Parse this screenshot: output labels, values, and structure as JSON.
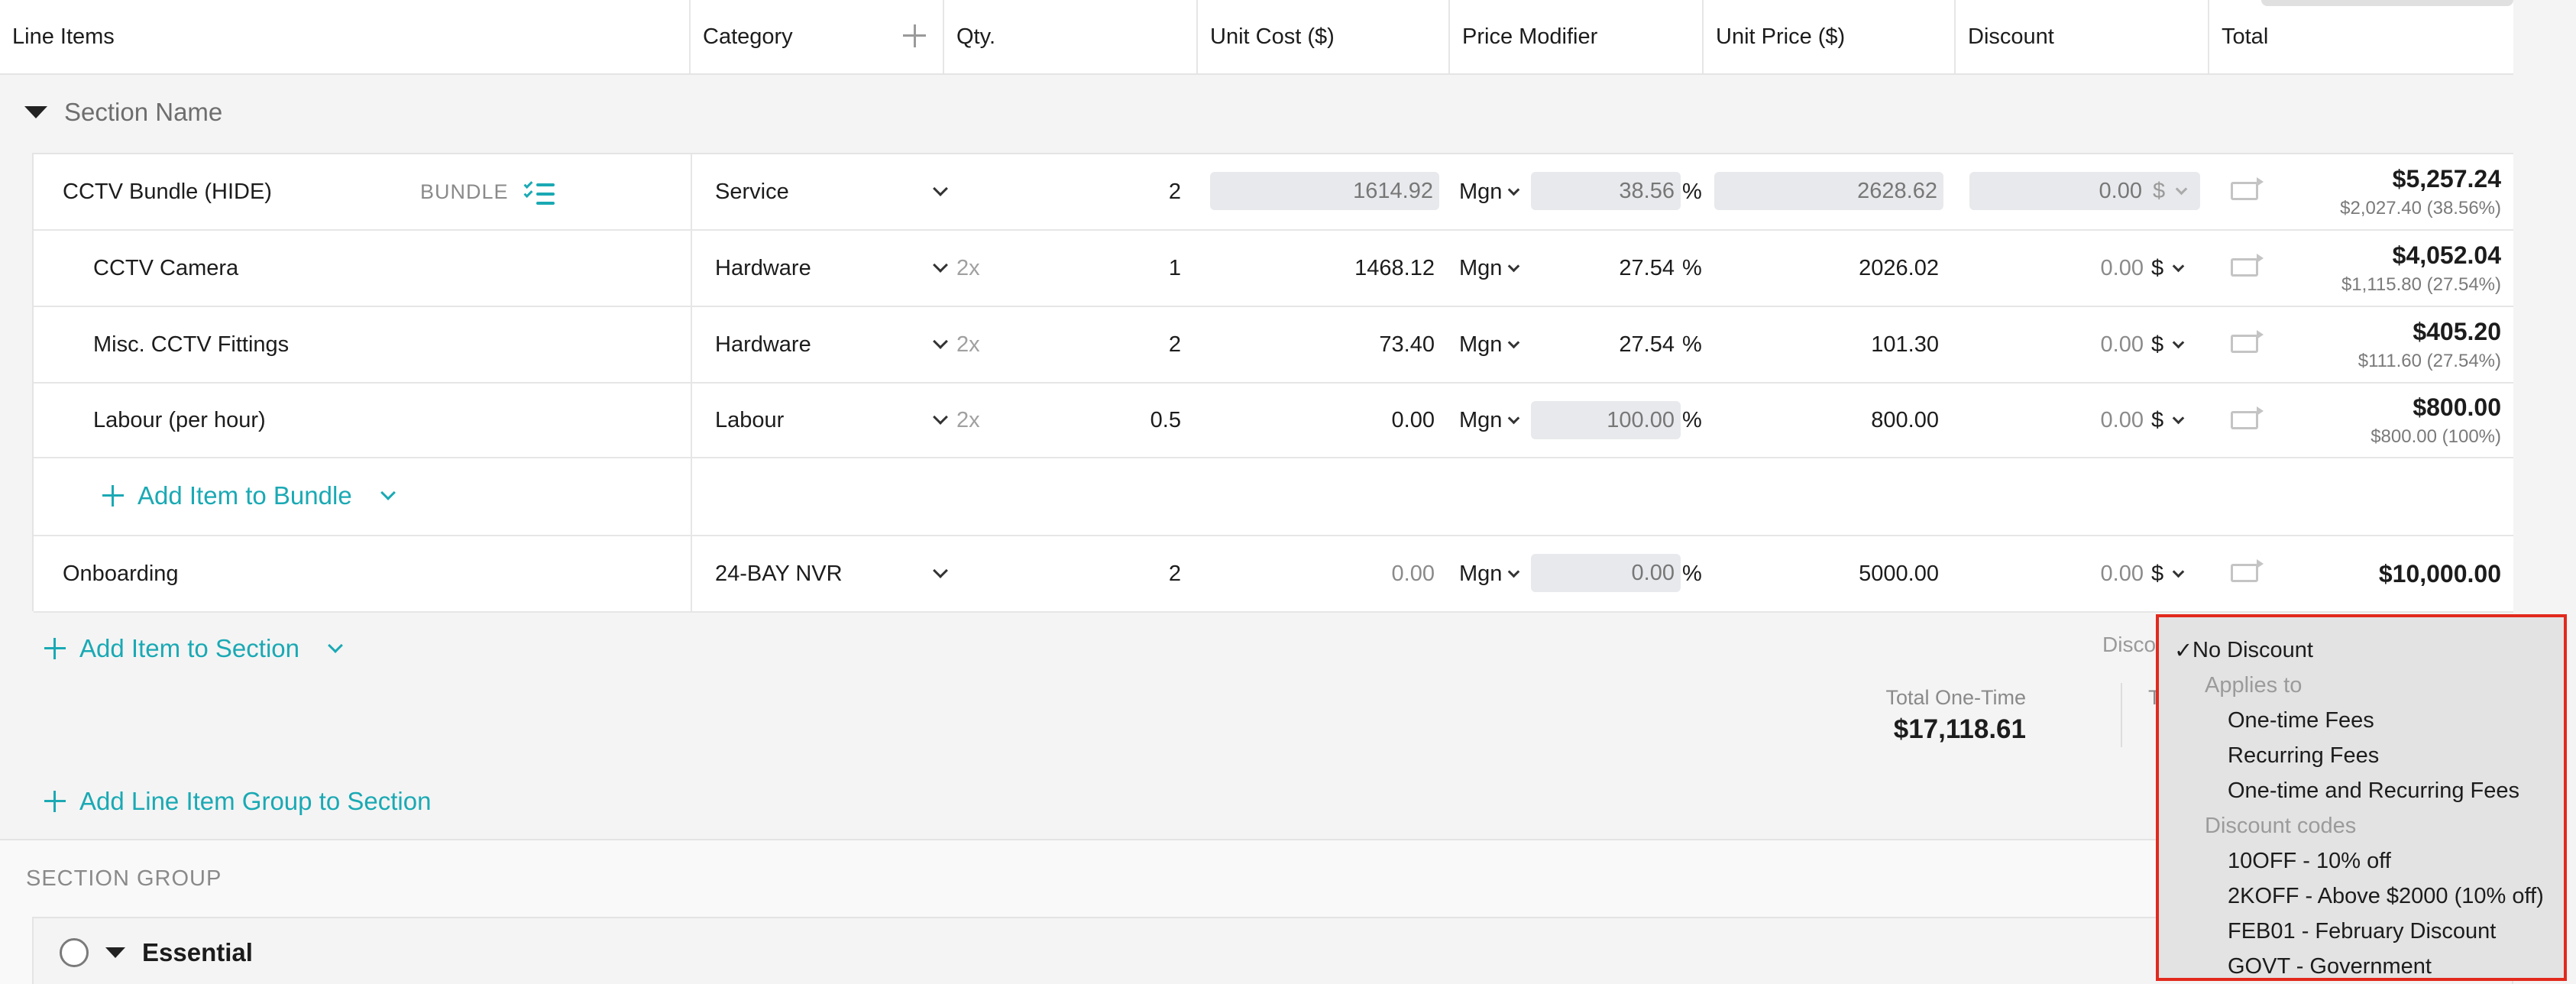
{
  "columns": {
    "line_items": "Line Items",
    "category": "Category",
    "qty": "Qty.",
    "unit_cost": "Unit Cost ($)",
    "price_modifier": "Price Modifier",
    "unit_price": "Unit Price ($)",
    "discount": "Discount",
    "total": "Total"
  },
  "section": {
    "name": "Section Name"
  },
  "rows": [
    {
      "name": "CCTV Bundle (HIDE)",
      "tag": "BUNDLE",
      "category": "Service",
      "multiplier": "",
      "qty": "2",
      "unit_cost": "1614.92",
      "modifier": "Mgn",
      "modifier_value": "38.56",
      "pct": "%",
      "unit_price": "2628.62",
      "discount": "0.00",
      "discount_type": "$",
      "total": "$5,257.24",
      "total_sub": "$2,027.40 (38.56%)"
    },
    {
      "name": "CCTV Camera",
      "category": "Hardware",
      "multiplier": "2x",
      "qty": "1",
      "unit_cost": "1468.12",
      "modifier": "Mgn",
      "modifier_value": "27.54",
      "pct": "%",
      "unit_price": "2026.02",
      "discount": "0.00",
      "discount_type": "$",
      "total": "$4,052.04",
      "total_sub": "$1,115.80 (27.54%)"
    },
    {
      "name": "Misc. CCTV Fittings",
      "category": "Hardware",
      "multiplier": "2x",
      "qty": "2",
      "unit_cost": "73.40",
      "modifier": "Mgn",
      "modifier_value": "27.54",
      "pct": "%",
      "unit_price": "101.30",
      "discount": "0.00",
      "discount_type": "$",
      "total": "$405.20",
      "total_sub": "$111.60 (27.54%)"
    },
    {
      "name": "Labour (per hour)",
      "category": "Labour",
      "multiplier": "2x",
      "qty": "0.5",
      "unit_cost": "0.00",
      "modifier": "Mgn",
      "modifier_value": "100.00",
      "pct": "%",
      "unit_price": "800.00",
      "discount": "0.00",
      "discount_type": "$",
      "total": "$800.00",
      "total_sub": "$800.00 (100%)"
    },
    {
      "name": "Onboarding",
      "category": "24-BAY NVR",
      "multiplier": "",
      "qty": "2",
      "unit_cost": "0.00",
      "modifier": "Mgn",
      "modifier_value": "0.00",
      "pct": "%",
      "unit_price": "5000.00",
      "discount": "0.00",
      "discount_type": "$",
      "total": "$10,000.00",
      "total_sub": ""
    }
  ],
  "actions": {
    "add_item_to_bundle": "Add Item to Bundle",
    "add_item_to_section": "Add Item to Section",
    "add_line_item_group": "Add Line Item Group to Section"
  },
  "totals": {
    "discount_label": "Discou",
    "one_time_label": "Total One-Time",
    "one_time_value": "$17,118.61",
    "truncated_label": "T"
  },
  "section_group": {
    "title": "SECTION GROUP",
    "group_name": "Essential"
  },
  "discount_menu": {
    "selected": "No Discount",
    "check": "✓",
    "applies_to_header": "Applies to",
    "applies_to": [
      "One-time Fees",
      "Recurring Fees",
      "One-time and Recurring Fees"
    ],
    "codes_header": "Discount codes",
    "codes": [
      "10OFF - 10% off",
      "2KOFF - Above $2000 (10% off)",
      "FEB01 - February Discount",
      "GOVT - Government"
    ]
  },
  "colors": {
    "accent": "#1aa9b4",
    "highlight": "#e2291d"
  }
}
